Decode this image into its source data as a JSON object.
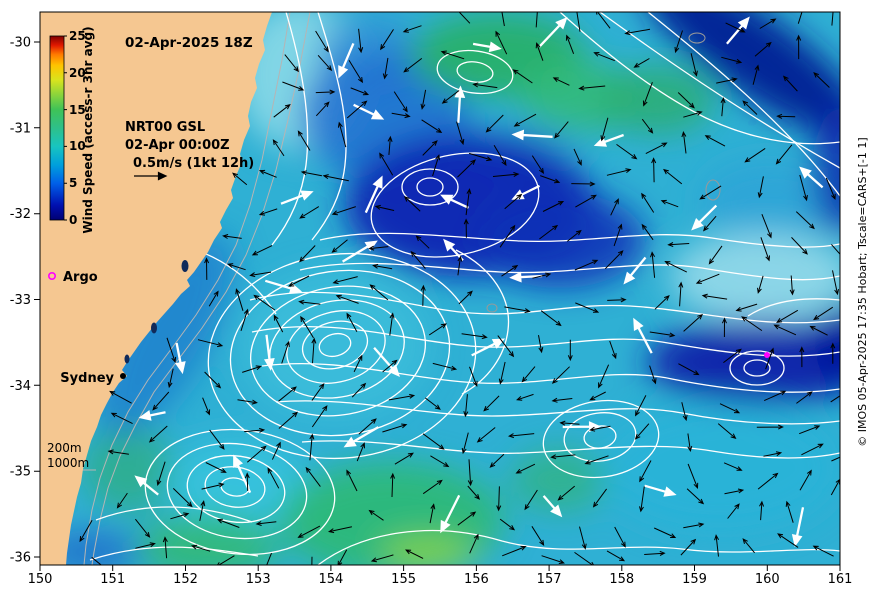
{
  "title": "02-Apr-2025 18Z",
  "legend": {
    "model": "NRT00 GSL",
    "valid_time": "02-Apr 00:00Z",
    "vector_scale": "0.5m/s (1kt 12h)",
    "argo": "Argo",
    "isobath_200m": "200m",
    "isobath_1000m": "1000m"
  },
  "colorbar": {
    "label": "Wind Speed (access-r 3hr avg)",
    "units_min": 0,
    "units_max": 25,
    "ticks": [
      "25",
      "20",
      "15",
      "10",
      "5",
      "0"
    ],
    "label_color": "#7c6400",
    "stops": [
      "#000074",
      "#0010b0",
      "#0060e8",
      "#00a0dc",
      "#18c4c0",
      "#2ec08a",
      "#3fc257",
      "#8ad43c",
      "#d8e41e",
      "#ffc400",
      "#ff7a00",
      "#e01800",
      "#7f0000"
    ]
  },
  "axes": {
    "x_ticks": [
      "150",
      "151",
      "152",
      "153",
      "154",
      "155",
      "156",
      "157",
      "158",
      "159",
      "160",
      "161"
    ],
    "y_ticks": [
      "-30",
      "-31",
      "-32",
      "-33",
      "-34",
      "-35",
      "-36"
    ],
    "x_range": [
      150,
      161
    ],
    "y_range": [
      -36,
      -30
    ]
  },
  "map": {
    "land_color": "#f5c791",
    "ocean_base_color": "#2fb0d4",
    "marker_color": "#ff00ff",
    "sydney_label": "Sydney",
    "markers": [
      {
        "name": "sydney",
        "lon": 151.2,
        "lat": -33.86
      },
      {
        "name": "argo-float",
        "lon": 160.0,
        "lat": -33.65
      }
    ]
  },
  "credit": "© IMOS 05-Apr-2025 17:35 Hobart; Tscale=CARS+[-1 1]"
}
